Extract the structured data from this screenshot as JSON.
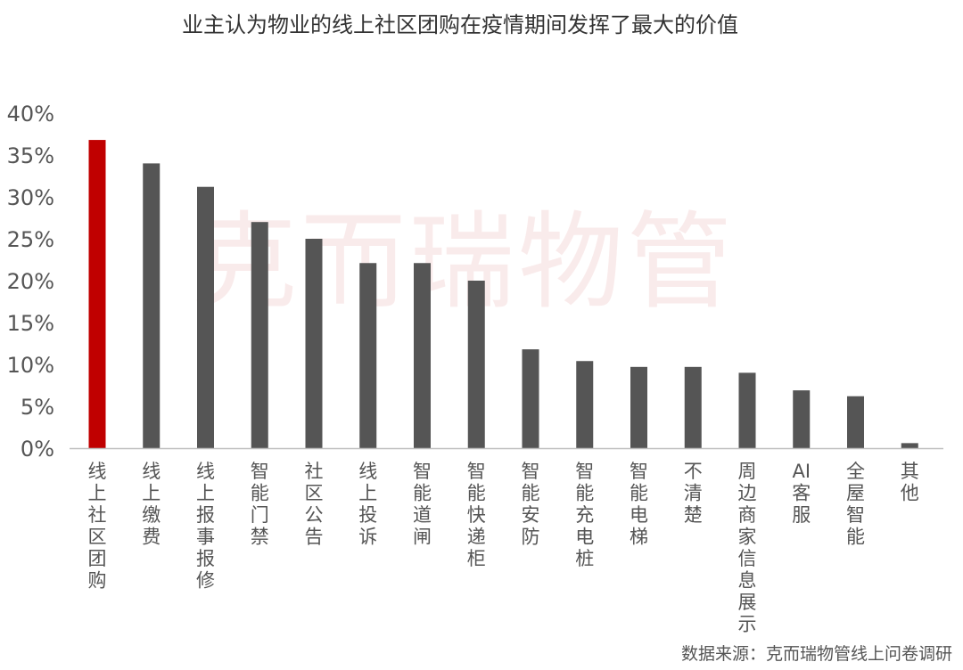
{
  "chart_data": {
    "type": "bar",
    "title": "业主认为物业的线上社区团购在疫情期间发挥了最大的价值",
    "xlabel": "",
    "ylabel": "",
    "ylim": [
      0,
      40
    ],
    "y_ticks": [
      "0%",
      "5%",
      "10%",
      "15%",
      "20%",
      "25%",
      "30%",
      "35%",
      "40%"
    ],
    "grid": false,
    "categories": [
      "线上社区团购",
      "线上缴费",
      "线上报事报修",
      "智能门禁",
      "社区公告",
      "线上投诉",
      "智能道闸",
      "智能快递柜",
      "智能安防",
      "智能充电桩",
      "智能电梯",
      "不清楚",
      "周边商家信息展示",
      "AI 客服",
      "全屋智能",
      "其他"
    ],
    "values": [
      36.8,
      34.0,
      31.2,
      27.0,
      25.0,
      22.1,
      22.1,
      20.0,
      11.8,
      10.4,
      9.7,
      9.7,
      9.0,
      6.9,
      6.2,
      0.6
    ],
    "highlight_index": 0,
    "colors": {
      "highlight": "#c00000",
      "bar": "#555555",
      "axis": "#bfbfbf"
    },
    "source": "数据来源：克而瑞物管线上问卷调研",
    "watermark": "克而瑞物管"
  }
}
